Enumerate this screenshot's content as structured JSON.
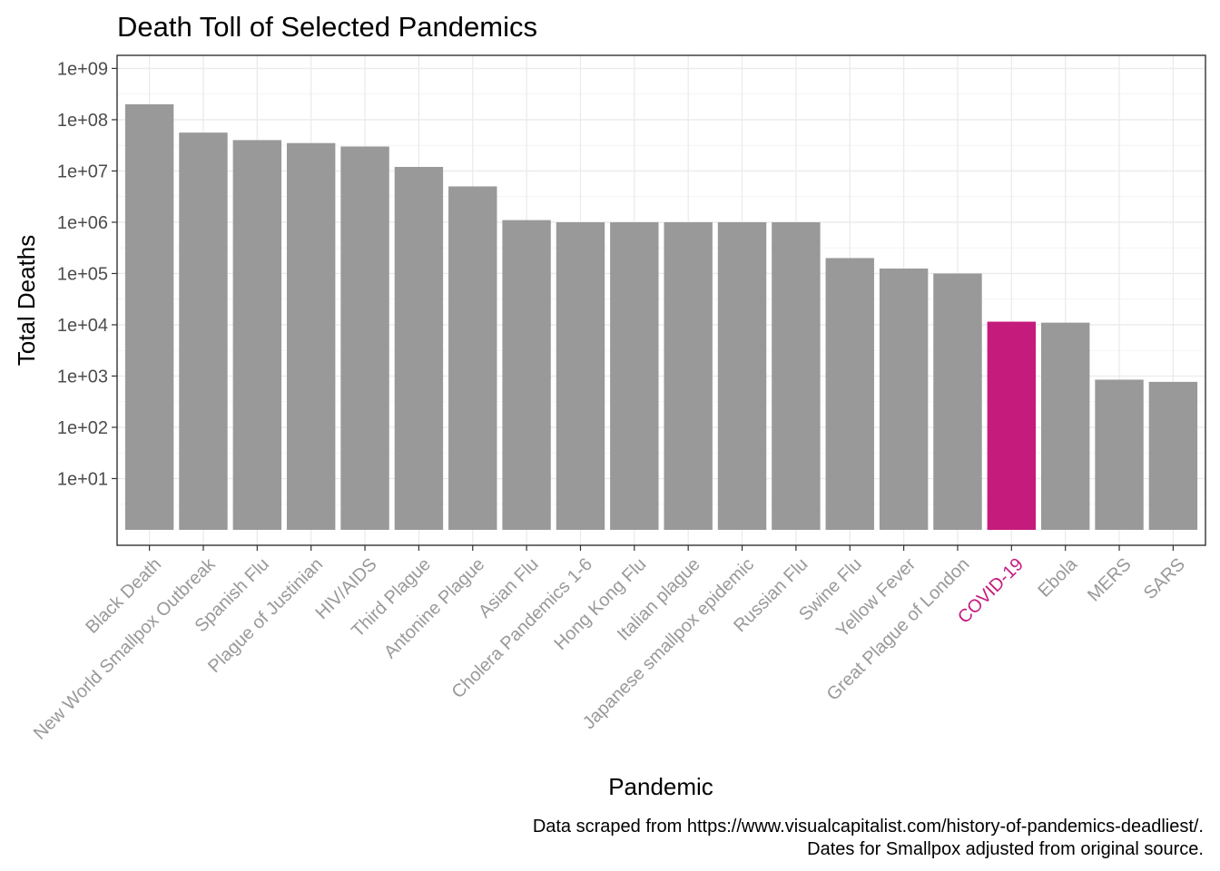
{
  "chart_data": {
    "type": "bar",
    "title": "Death Toll of Selected Pandemics",
    "xlabel": "Pandemic",
    "ylabel": "Total Deaths",
    "y_scale": "log10",
    "ylim": [
      0.5,
      1800000000
    ],
    "y_ticks": [
      10,
      100,
      1000,
      10000,
      100000,
      1000000,
      10000000,
      100000000,
      1000000000
    ],
    "y_tick_labels": [
      "1e+01",
      "1e+02",
      "1e+03",
      "1e+04",
      "1e+05",
      "1e+06",
      "1e+07",
      "1e+08",
      "1e+09"
    ],
    "grid": true,
    "legend": "none",
    "bar_color": "#999999",
    "highlight_color": "#C51B7D",
    "tick_label_color": "#999999",
    "highlight_category": "COVID-19",
    "categories": [
      "Black Death",
      "New World Smallpox Outbreak",
      "Spanish Flu",
      "Plague of Justinian",
      "HIV/AIDS",
      "Third Plague",
      "Antonine Plague",
      "Asian Flu",
      "Cholera Pandemics 1-6",
      "Hong Kong Flu",
      "Italian plague",
      "Japanese smallpox epidemic",
      "Russian Flu",
      "Swine Flu",
      "Yellow Fever",
      "Great Plague of London",
      "COVID-19",
      "Ebola",
      "MERS",
      "SARS"
    ],
    "values": [
      200000000,
      56000000,
      40000000,
      35000000,
      30000000,
      12000000,
      5000000,
      1100000,
      1000000,
      1000000,
      1000000,
      1000000,
      1000000,
      200000,
      125000,
      100000,
      11500,
      11000,
      850,
      770
    ],
    "caption": [
      "Data scraped from https://www.visualcapitalist.com/history-of-pandemics-deadliest/.",
      "Dates for Smallpox adjusted from original source."
    ]
  }
}
